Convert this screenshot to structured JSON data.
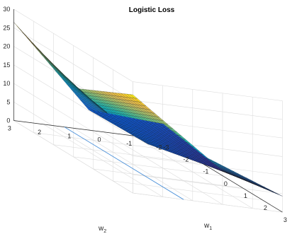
{
  "chart_data": {
    "type": "surface",
    "title": "Logistic Loss",
    "xlabel": {
      "base": "w",
      "sub": "1"
    },
    "ylabel": {
      "base": "w",
      "sub": "2"
    },
    "zlabel": "",
    "xlim": [
      -3,
      3
    ],
    "ylim": [
      -2,
      3
    ],
    "zlim": [
      0,
      30
    ],
    "x_ticks": [
      -3,
      -2,
      -1,
      0,
      1,
      2,
      3
    ],
    "y_ticks": [
      -2,
      -1,
      0,
      1,
      2,
      3
    ],
    "z_ticks": [
      0,
      5,
      10,
      15,
      20,
      25,
      30
    ],
    "x_tick_labels": [
      "-3",
      "-2",
      "-1",
      "0",
      "1",
      "2",
      "3"
    ],
    "y_tick_labels": [
      "-2",
      "-1",
      "0",
      "1",
      "2",
      "3"
    ],
    "z_tick_labels": [
      "0",
      "5",
      "10",
      "15",
      "20",
      "25",
      "30"
    ],
    "grid": true,
    "colormap": "parula",
    "surface_samples": {
      "w1": [
        -3,
        0,
        3
      ],
      "w2": [
        -2,
        0.5,
        3
      ],
      "loss": [
        [
          4.2,
          5.5,
          26.5
        ],
        [
          1.3,
          6.0,
          18.5
        ],
        [
          4.3,
          12.0,
          26.5
        ]
      ]
    },
    "floor_line": {
      "points": [
        {
          "w1": -3,
          "w2": 1.3,
          "z": 0
        },
        {
          "w1": 3,
          "w2": 1.3,
          "z": 0
        }
      ],
      "color": "#4a90d9"
    }
  }
}
